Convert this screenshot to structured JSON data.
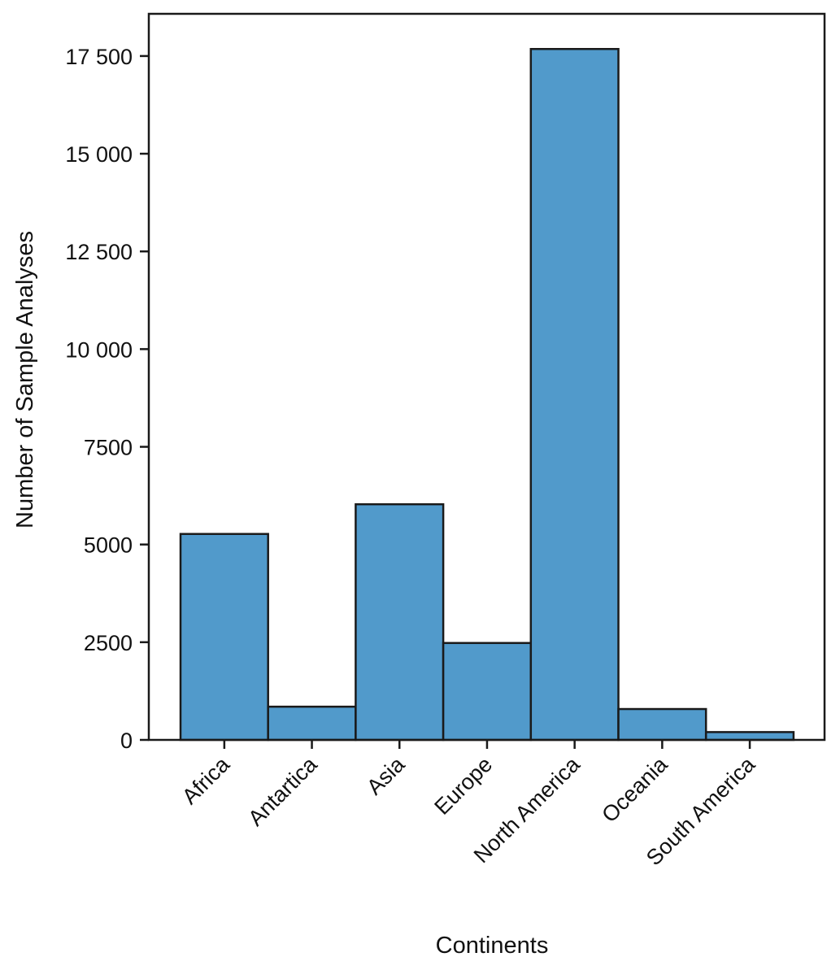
{
  "chart_data": {
    "type": "bar",
    "title": "",
    "xlabel": "Continents",
    "ylabel": "Number of Sample Analyses",
    "categories": [
      "Africa",
      "Antartica",
      "Asia",
      "Europe",
      "North America",
      "Oceania",
      "South America"
    ],
    "values": [
      5270,
      850,
      6030,
      2480,
      17680,
      790,
      200
    ],
    "ylim": [
      0,
      18580
    ],
    "yticks": [
      0,
      2500,
      5000,
      7500,
      10000,
      12500,
      15000,
      17500
    ],
    "ytick_labels": [
      "0",
      "2500",
      "5000",
      "7500",
      "10 000",
      "12 500",
      "15 000",
      "17 500"
    ],
    "grid": false,
    "legend": "none",
    "bar_color": "#519acb",
    "edge_color": "#1a1a1a"
  }
}
